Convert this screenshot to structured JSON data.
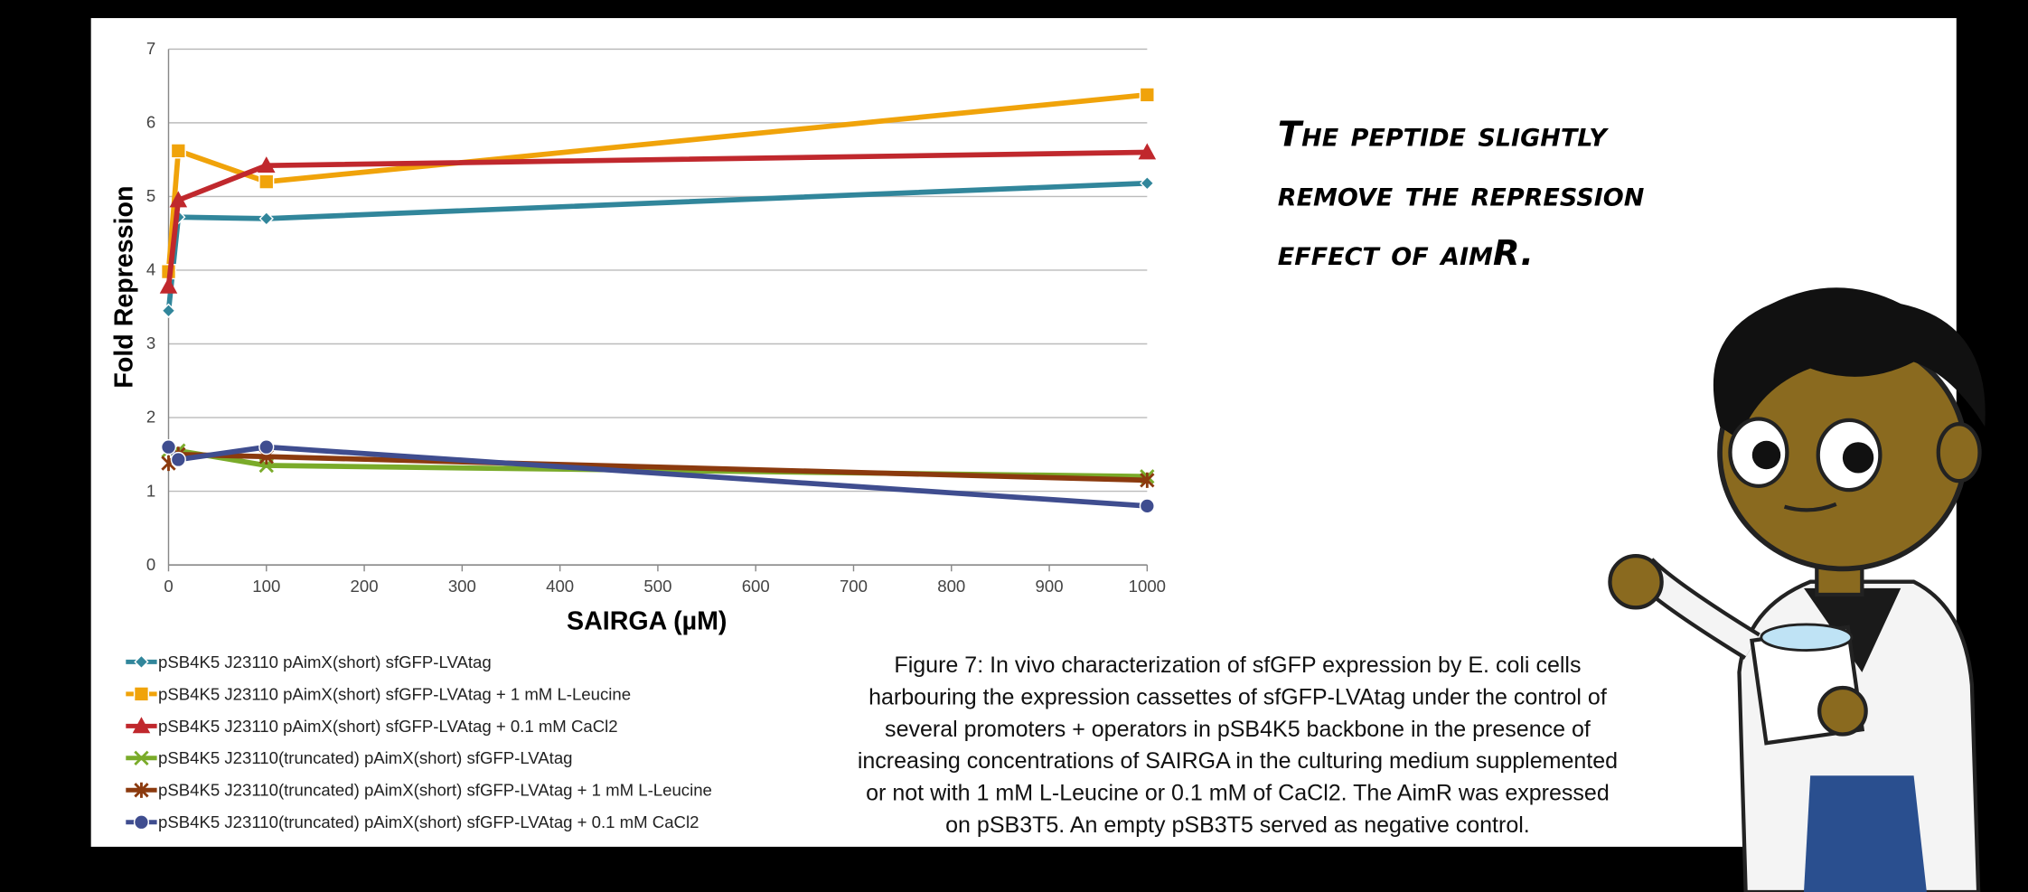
{
  "chart_data": {
    "type": "line",
    "x": [
      0,
      10,
      100,
      1000
    ],
    "xlim": [
      0,
      1000
    ],
    "xticks": [
      0,
      100,
      200,
      300,
      400,
      500,
      600,
      700,
      800,
      900,
      1000
    ],
    "ylim": [
      0,
      7
    ],
    "yticks": [
      0,
      1,
      2,
      3,
      4,
      5,
      6,
      7
    ],
    "xlabel": "SAIRGA (µM)",
    "ylabel": "Fold Repression",
    "grid": true,
    "series": [
      {
        "name": "pSB4K5 J23110 pAimX(short) sfGFP-LVAtag",
        "color": "#31869b",
        "marker": "diamond",
        "values": [
          3.45,
          4.72,
          4.7,
          5.18
        ]
      },
      {
        "name": "pSB4K5 J23110 pAimX(short) sfGFP-LVAtag + 1 mM L-Leucine",
        "color": "#f0a30a",
        "marker": "square",
        "values": [
          3.98,
          5.62,
          5.2,
          6.38
        ]
      },
      {
        "name": "pSB4K5 J23110 pAimX(short) sfGFP-LVAtag + 0.1 mM CaCl2",
        "color": "#c0282d",
        "marker": "triangle",
        "values": [
          3.78,
          4.95,
          5.42,
          5.6
        ]
      },
      {
        "name": "pSB4K5 J23110(truncated) pAimX(short) sfGFP-LVAtag",
        "color": "#7aab2a",
        "marker": "x",
        "values": [
          1.55,
          1.55,
          1.35,
          1.2
        ]
      },
      {
        "name": "pSB4K5 J23110(truncated) pAimX(short) sfGFP-LVAtag + 1 mM L-Leucine",
        "color": "#8b3a0e",
        "marker": "star",
        "values": [
          1.38,
          1.5,
          1.47,
          1.15
        ]
      },
      {
        "name": "pSB4K5 J23110(truncated) pAimX(short) sfGFP-LVAtag + 0.1 mM CaCl2",
        "color": "#3f4d8f",
        "marker": "circle",
        "values": [
          1.6,
          1.43,
          1.6,
          0.8
        ]
      }
    ]
  },
  "annotation": [
    "The peptide slightly",
    "remove the repression",
    "effect of aimR."
  ],
  "caption": [
    "Figure 7: In vivo characterization of sfGFP expression by E. coli cells",
    "harbouring the expression cassettes of sfGFP-LVAtag under the control of",
    "several promoters + operators in pSB4K5 backbone in the presence of",
    "increasing concentrations of SAIRGA in the culturing medium supplemented",
    "or not with 1 mM L-Leucine or 0.1 mM of CaCl2. The AimR was expressed",
    "on pSB3T5. An empty pSB3T5 served as negative control."
  ]
}
